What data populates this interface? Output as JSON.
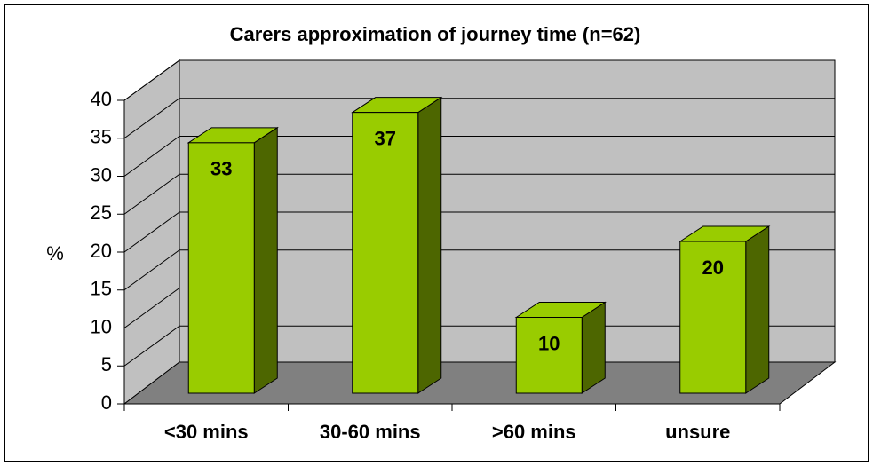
{
  "chart_data": {
    "type": "bar3d",
    "title": "Carers approximation of journey time (n=62)",
    "y_label": "%",
    "categories": [
      "<30 mins",
      "30-60 mins",
      ">60 mins",
      "unsure"
    ],
    "values": [
      33,
      37,
      10,
      20
    ],
    "color": "#99cc00",
    "ylim": [
      0,
      40
    ],
    "yticks": [
      0,
      5,
      10,
      15,
      20,
      25,
      30,
      35,
      40
    ],
    "grid": true
  }
}
